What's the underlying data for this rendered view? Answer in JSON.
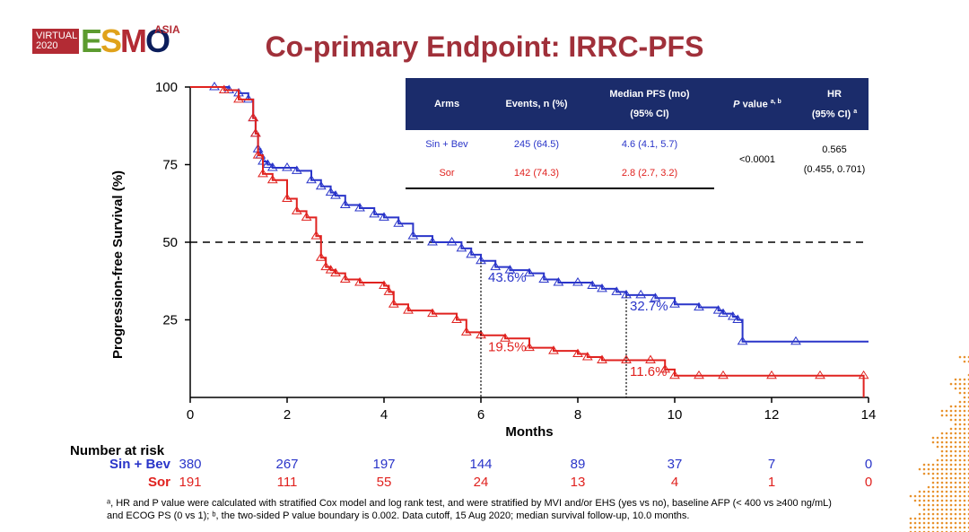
{
  "logo": {
    "virtual_line1": "VIRTUAL",
    "virtual_line2": "2020",
    "brand_e": "E",
    "brand_s": "S",
    "brand_m": "M",
    "brand_o": "O",
    "region": "ASIA"
  },
  "slide_title": "Co-primary Endpoint: IRRC-PFS",
  "stats_table": {
    "headers": {
      "arms": "Arms",
      "events": "Events, n (%)",
      "median_l1": "Median PFS (mo)",
      "median_l2": "(95% CI)",
      "pvalue_p": "P",
      "pvalue_rest": " value",
      "pvalue_sup": "a, b",
      "hr_l1": "HR",
      "hr_l2": "(95% CI)",
      "hr_sup": "a"
    },
    "rows": [
      {
        "arm": "Sin + Bev",
        "events": "245 (64.5)",
        "median": "4.6 (4.1, 5.7)"
      },
      {
        "arm": "Sor",
        "events": "142 (74.3)",
        "median": "2.8 (2.7, 3.2)"
      }
    ],
    "pvalue": "<0.0001",
    "hr_value": "0.565",
    "hr_ci": "(0.455, 0.701)"
  },
  "colors": {
    "sin_bev": "#2a35c9",
    "sor": "#e0221f",
    "title": "#a0303a",
    "table_header": "#1b2c6b"
  },
  "chart_data": {
    "type": "line",
    "xlabel": "Months",
    "ylabel": "Progression-free Survival (%)",
    "xlim": [
      0,
      14
    ],
    "ylim": [
      0,
      100
    ],
    "x_ticks": [
      "0",
      "2",
      "4",
      "6",
      "8",
      "10",
      "12",
      "14"
    ],
    "y_ticks": [
      "25",
      "50",
      "75",
      "100"
    ],
    "reference_line_y": 50,
    "series": [
      {
        "name": "Sin + Bev",
        "color": "#2a35c9",
        "x": [
          0,
          0.5,
          0.8,
          1.0,
          1.2,
          1.3,
          1.35,
          1.4,
          1.45,
          1.5,
          1.6,
          1.7,
          2.0,
          2.2,
          2.5,
          2.7,
          2.9,
          3.0,
          3.2,
          3.5,
          3.8,
          4.0,
          4.3,
          4.6,
          5.0,
          5.4,
          5.6,
          5.8,
          6.0,
          6.3,
          6.6,
          7.0,
          7.3,
          7.6,
          8.0,
          8.3,
          8.5,
          8.8,
          9.0,
          9.3,
          9.6,
          10.0,
          10.5,
          10.9,
          11.0,
          11.2,
          11.3,
          11.4,
          12.5,
          14.0
        ],
        "y": [
          100,
          100,
          99,
          98,
          96,
          90,
          85,
          80,
          78,
          76,
          75,
          74,
          74,
          73,
          70,
          68,
          66,
          65,
          62,
          61,
          59,
          58,
          56,
          52,
          50,
          50,
          48,
          46,
          44,
          42,
          41,
          40,
          38,
          37,
          37,
          36,
          35,
          34,
          33,
          33,
          32,
          30,
          29,
          28,
          27,
          26,
          25,
          18,
          18,
          18
        ]
      },
      {
        "name": "Sor",
        "color": "#e0221f",
        "x": [
          0,
          0.7,
          1.0,
          1.3,
          1.35,
          1.4,
          1.5,
          1.7,
          2.0,
          2.2,
          2.4,
          2.6,
          2.7,
          2.8,
          2.9,
          3.0,
          3.2,
          3.5,
          4.0,
          4.1,
          4.2,
          4.5,
          5.0,
          5.5,
          5.7,
          6.0,
          6.5,
          7.0,
          7.5,
          8.0,
          8.2,
          8.5,
          9.0,
          9.5,
          9.8,
          10.0,
          10.5,
          11.0,
          12.0,
          13.0,
          13.9,
          13.9
        ],
        "y": [
          100,
          99,
          96,
          90,
          85,
          78,
          72,
          70,
          64,
          60,
          58,
          52,
          45,
          42,
          41,
          40,
          38,
          37,
          36,
          34,
          30,
          28,
          27,
          25,
          21,
          20,
          19,
          16,
          15,
          14,
          13,
          12,
          12,
          12,
          9,
          7,
          7,
          7,
          7,
          7,
          7,
          0
        ]
      }
    ],
    "annotations": [
      {
        "text": "43.6%",
        "x": 6,
        "y": 43.6,
        "series": "Sin + Bev"
      },
      {
        "text": "19.5%",
        "x": 6,
        "y": 19.5,
        "series": "Sor"
      },
      {
        "text": "32.7%",
        "x": 9,
        "y": 32.7,
        "series": "Sin + Bev"
      },
      {
        "text": "11.6%",
        "x": 9,
        "y": 11.6,
        "series": "Sor"
      }
    ]
  },
  "risk_table": {
    "heading": "Number at risk",
    "rows": [
      {
        "label": "Sin + Bev",
        "values": [
          "380",
          "267",
          "197",
          "144",
          "89",
          "37",
          "7",
          "0"
        ]
      },
      {
        "label": "Sor",
        "values": [
          "191",
          "111",
          "55",
          "24",
          "13",
          "4",
          "1",
          "0"
        ]
      }
    ]
  },
  "footnote": {
    "line1": "ᵃ, HR and P value were calculated with stratified Cox model and log rank test, and were stratified by MVI and/or EHS (yes vs no), baseline AFP (< 400 vs ≥400 ng/mL)",
    "line2": "and ECOG PS (0 vs 1); ᵇ, the two-sided P value boundary is 0.002. Data cutoff, 15 Aug 2020; median survival follow-up, 10.0 months."
  }
}
